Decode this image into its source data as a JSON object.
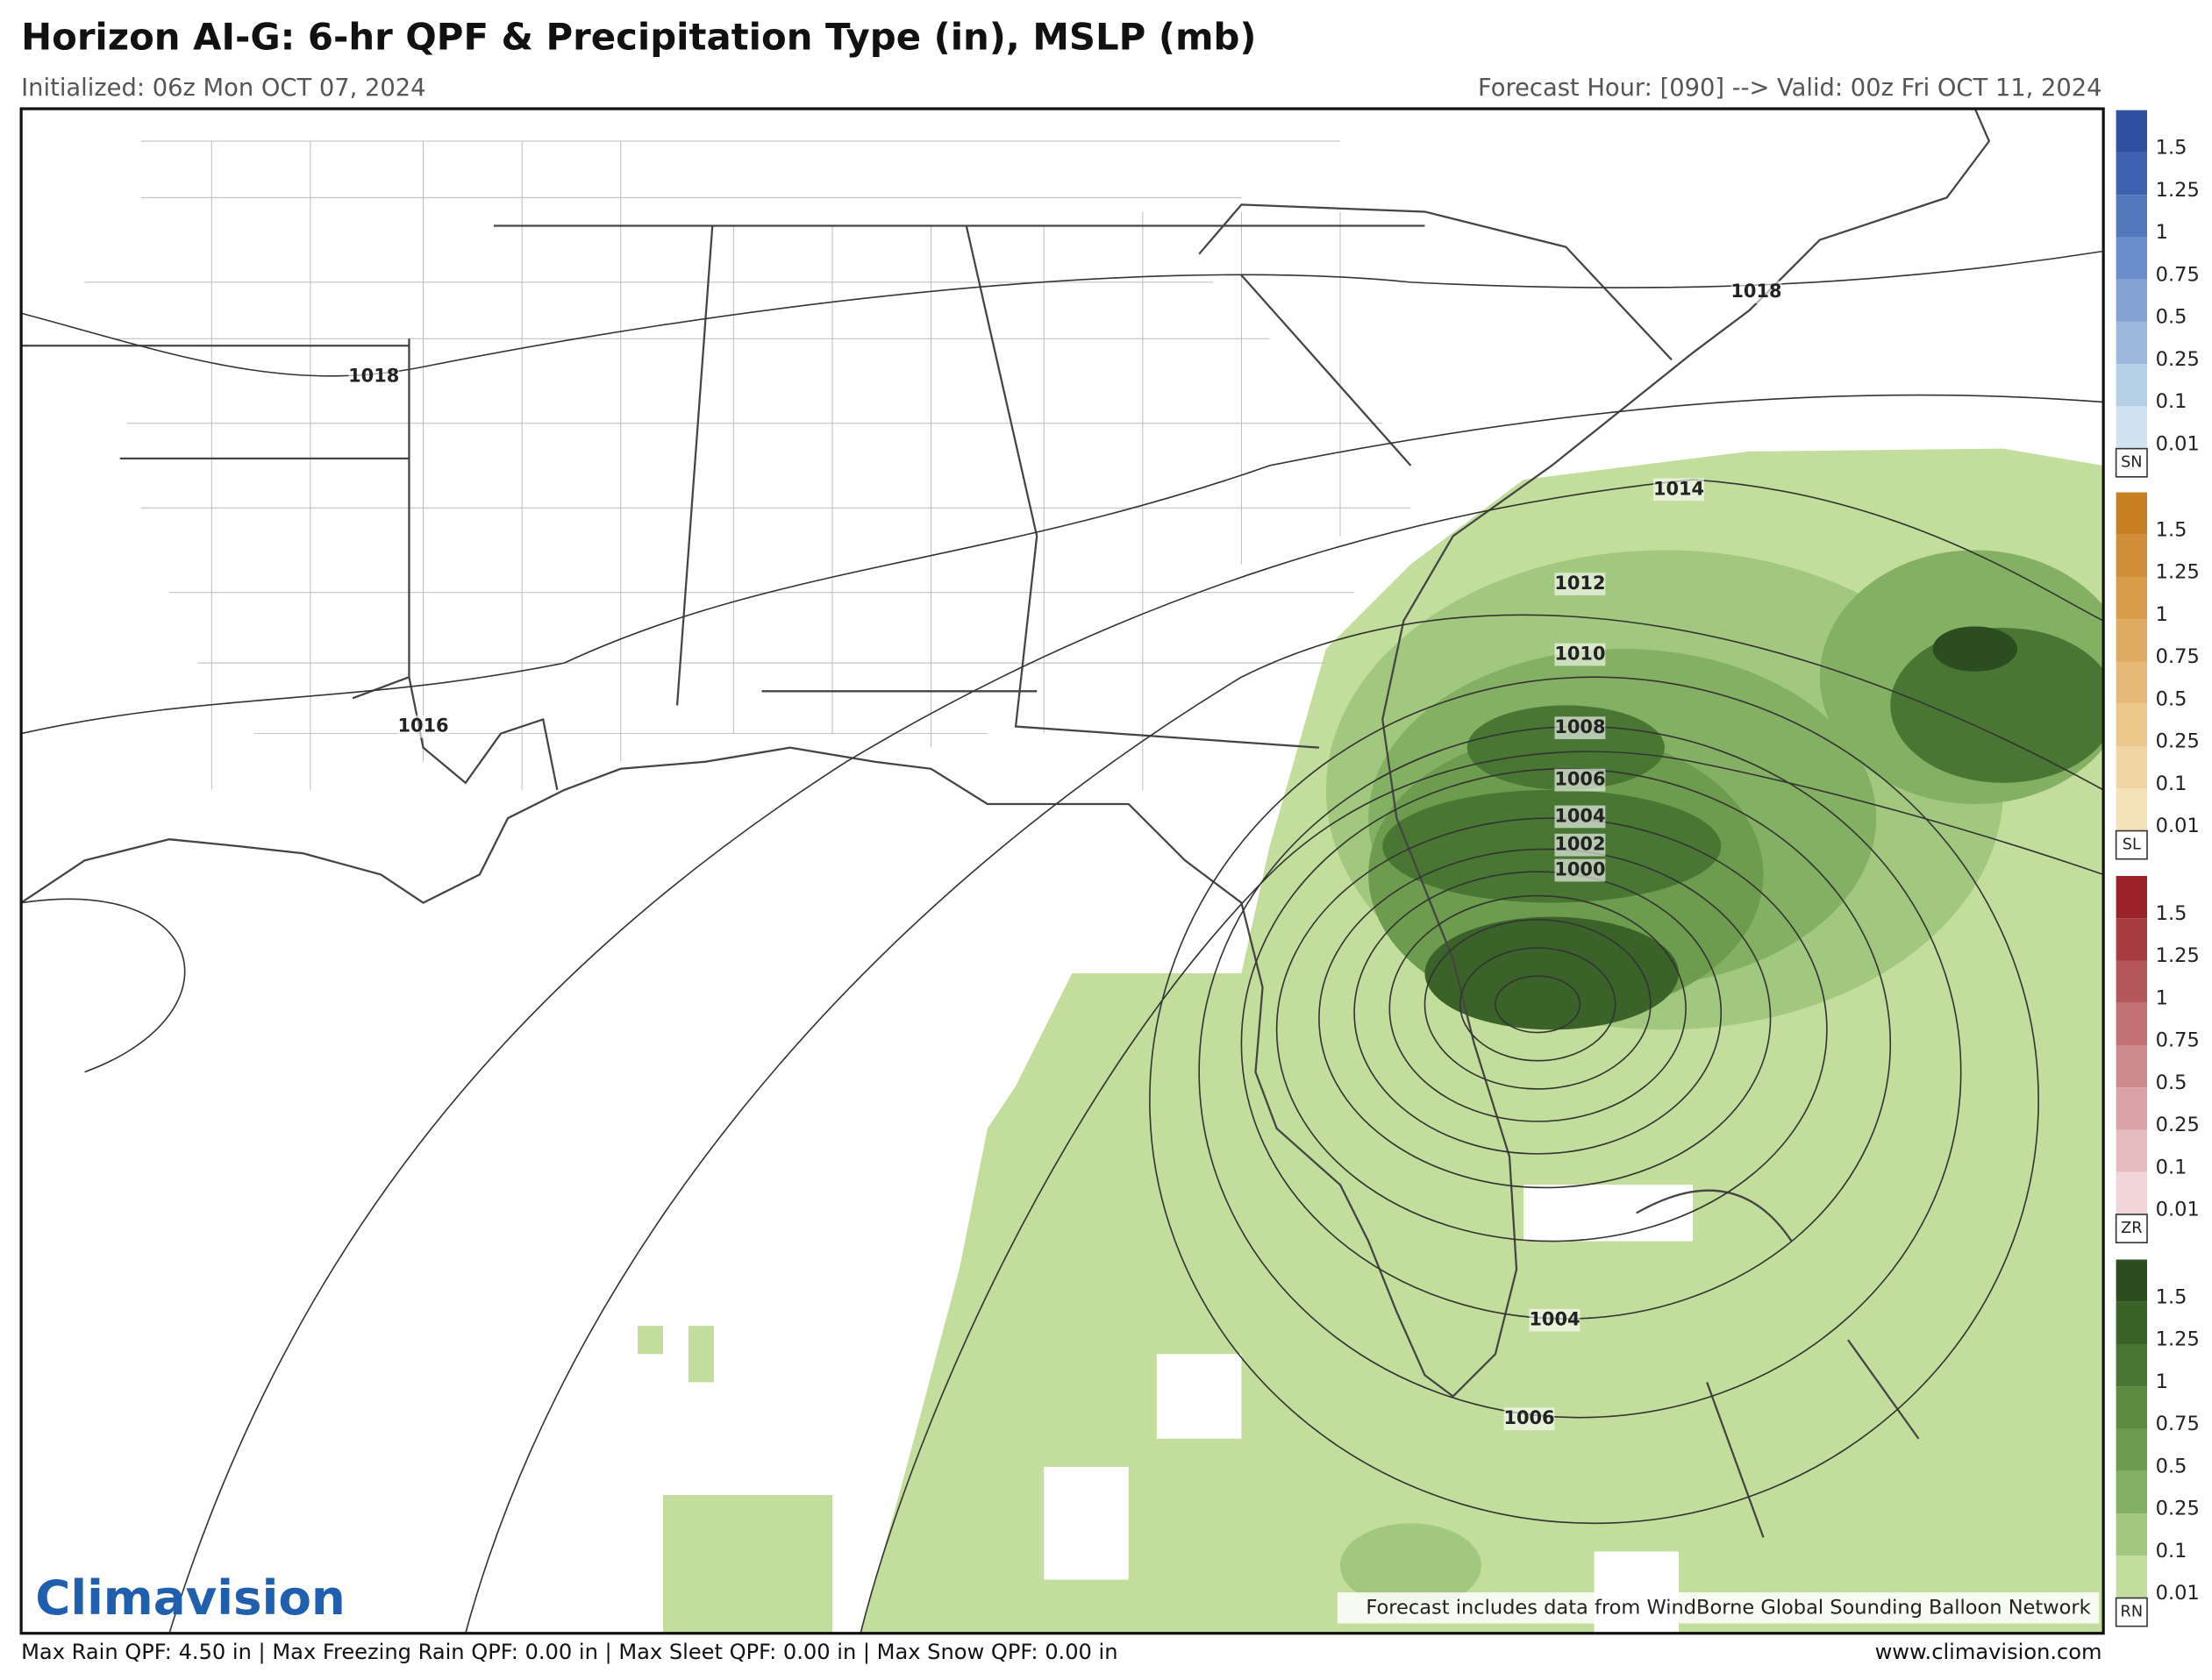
{
  "header": {
    "title": "Horizon AI-G: 6-hr QPF & Precipitation Type (in), MSLP (mb)",
    "initialized": "Initialized: 06z Mon OCT 07, 2024",
    "forecast": "Forecast Hour: [090] --> Valid: 00z Fri OCT 11, 2024"
  },
  "map": {
    "isobar_labels": [
      "1018",
      "1018",
      "1014",
      "1012",
      "1010",
      "1008",
      "1006",
      "1004",
      "1002",
      "1000",
      "1016",
      "1004",
      "1006"
    ],
    "credit": "Forecast includes data from WindBorne Global Sounding Balloon Network",
    "logo": "Climavision"
  },
  "legend": {
    "bars": [
      {
        "tag": "SN",
        "labels": [
          "1.5",
          "1.25",
          "1",
          "0.75",
          "0.5",
          "0.25",
          "0.1",
          "0.01"
        ],
        "colors": [
          "#2f4fa0",
          "#3f62b0",
          "#5277bd",
          "#6a8cc8",
          "#83a3d3",
          "#9cb9dd",
          "#b5cfe7",
          "#cfe3f0"
        ]
      },
      {
        "tag": "SL",
        "labels": [
          "1.5",
          "1.25",
          "1",
          "0.75",
          "0.5",
          "0.25",
          "0.1",
          "0.01"
        ],
        "colors": [
          "#c77f22",
          "#d08e36",
          "#d89d4b",
          "#dfab60",
          "#e6ba76",
          "#ecc88c",
          "#f1d5a2",
          "#f6e2b8"
        ]
      },
      {
        "tag": "ZR",
        "labels": [
          "1.5",
          "1.25",
          "1",
          "0.75",
          "0.5",
          "0.25",
          "0.1",
          "0.01"
        ],
        "colors": [
          "#9b2226",
          "#a83c40",
          "#b5565a",
          "#c27074",
          "#cf8a8e",
          "#dba3a7",
          "#e6bcc0",
          "#f1d5d8"
        ]
      },
      {
        "tag": "RN",
        "labels": [
          "1.5",
          "1.25",
          "1",
          "0.75",
          "0.5",
          "0.25",
          "0.1",
          "0.01"
        ],
        "colors": [
          "#2b4d1f",
          "#3a6229",
          "#4a7634",
          "#5b8a40",
          "#6d9c4e",
          "#84b063",
          "#a2c77f",
          "#c2dd9c"
        ]
      }
    ]
  },
  "footer": {
    "stats": "Max Rain QPF: 4.50 in | Max Freezing Rain QPF: 0.00 in | Max Sleet QPF: 0.00 in | Max Snow QPF: 0.00 in",
    "url": "www.climavision.com"
  }
}
